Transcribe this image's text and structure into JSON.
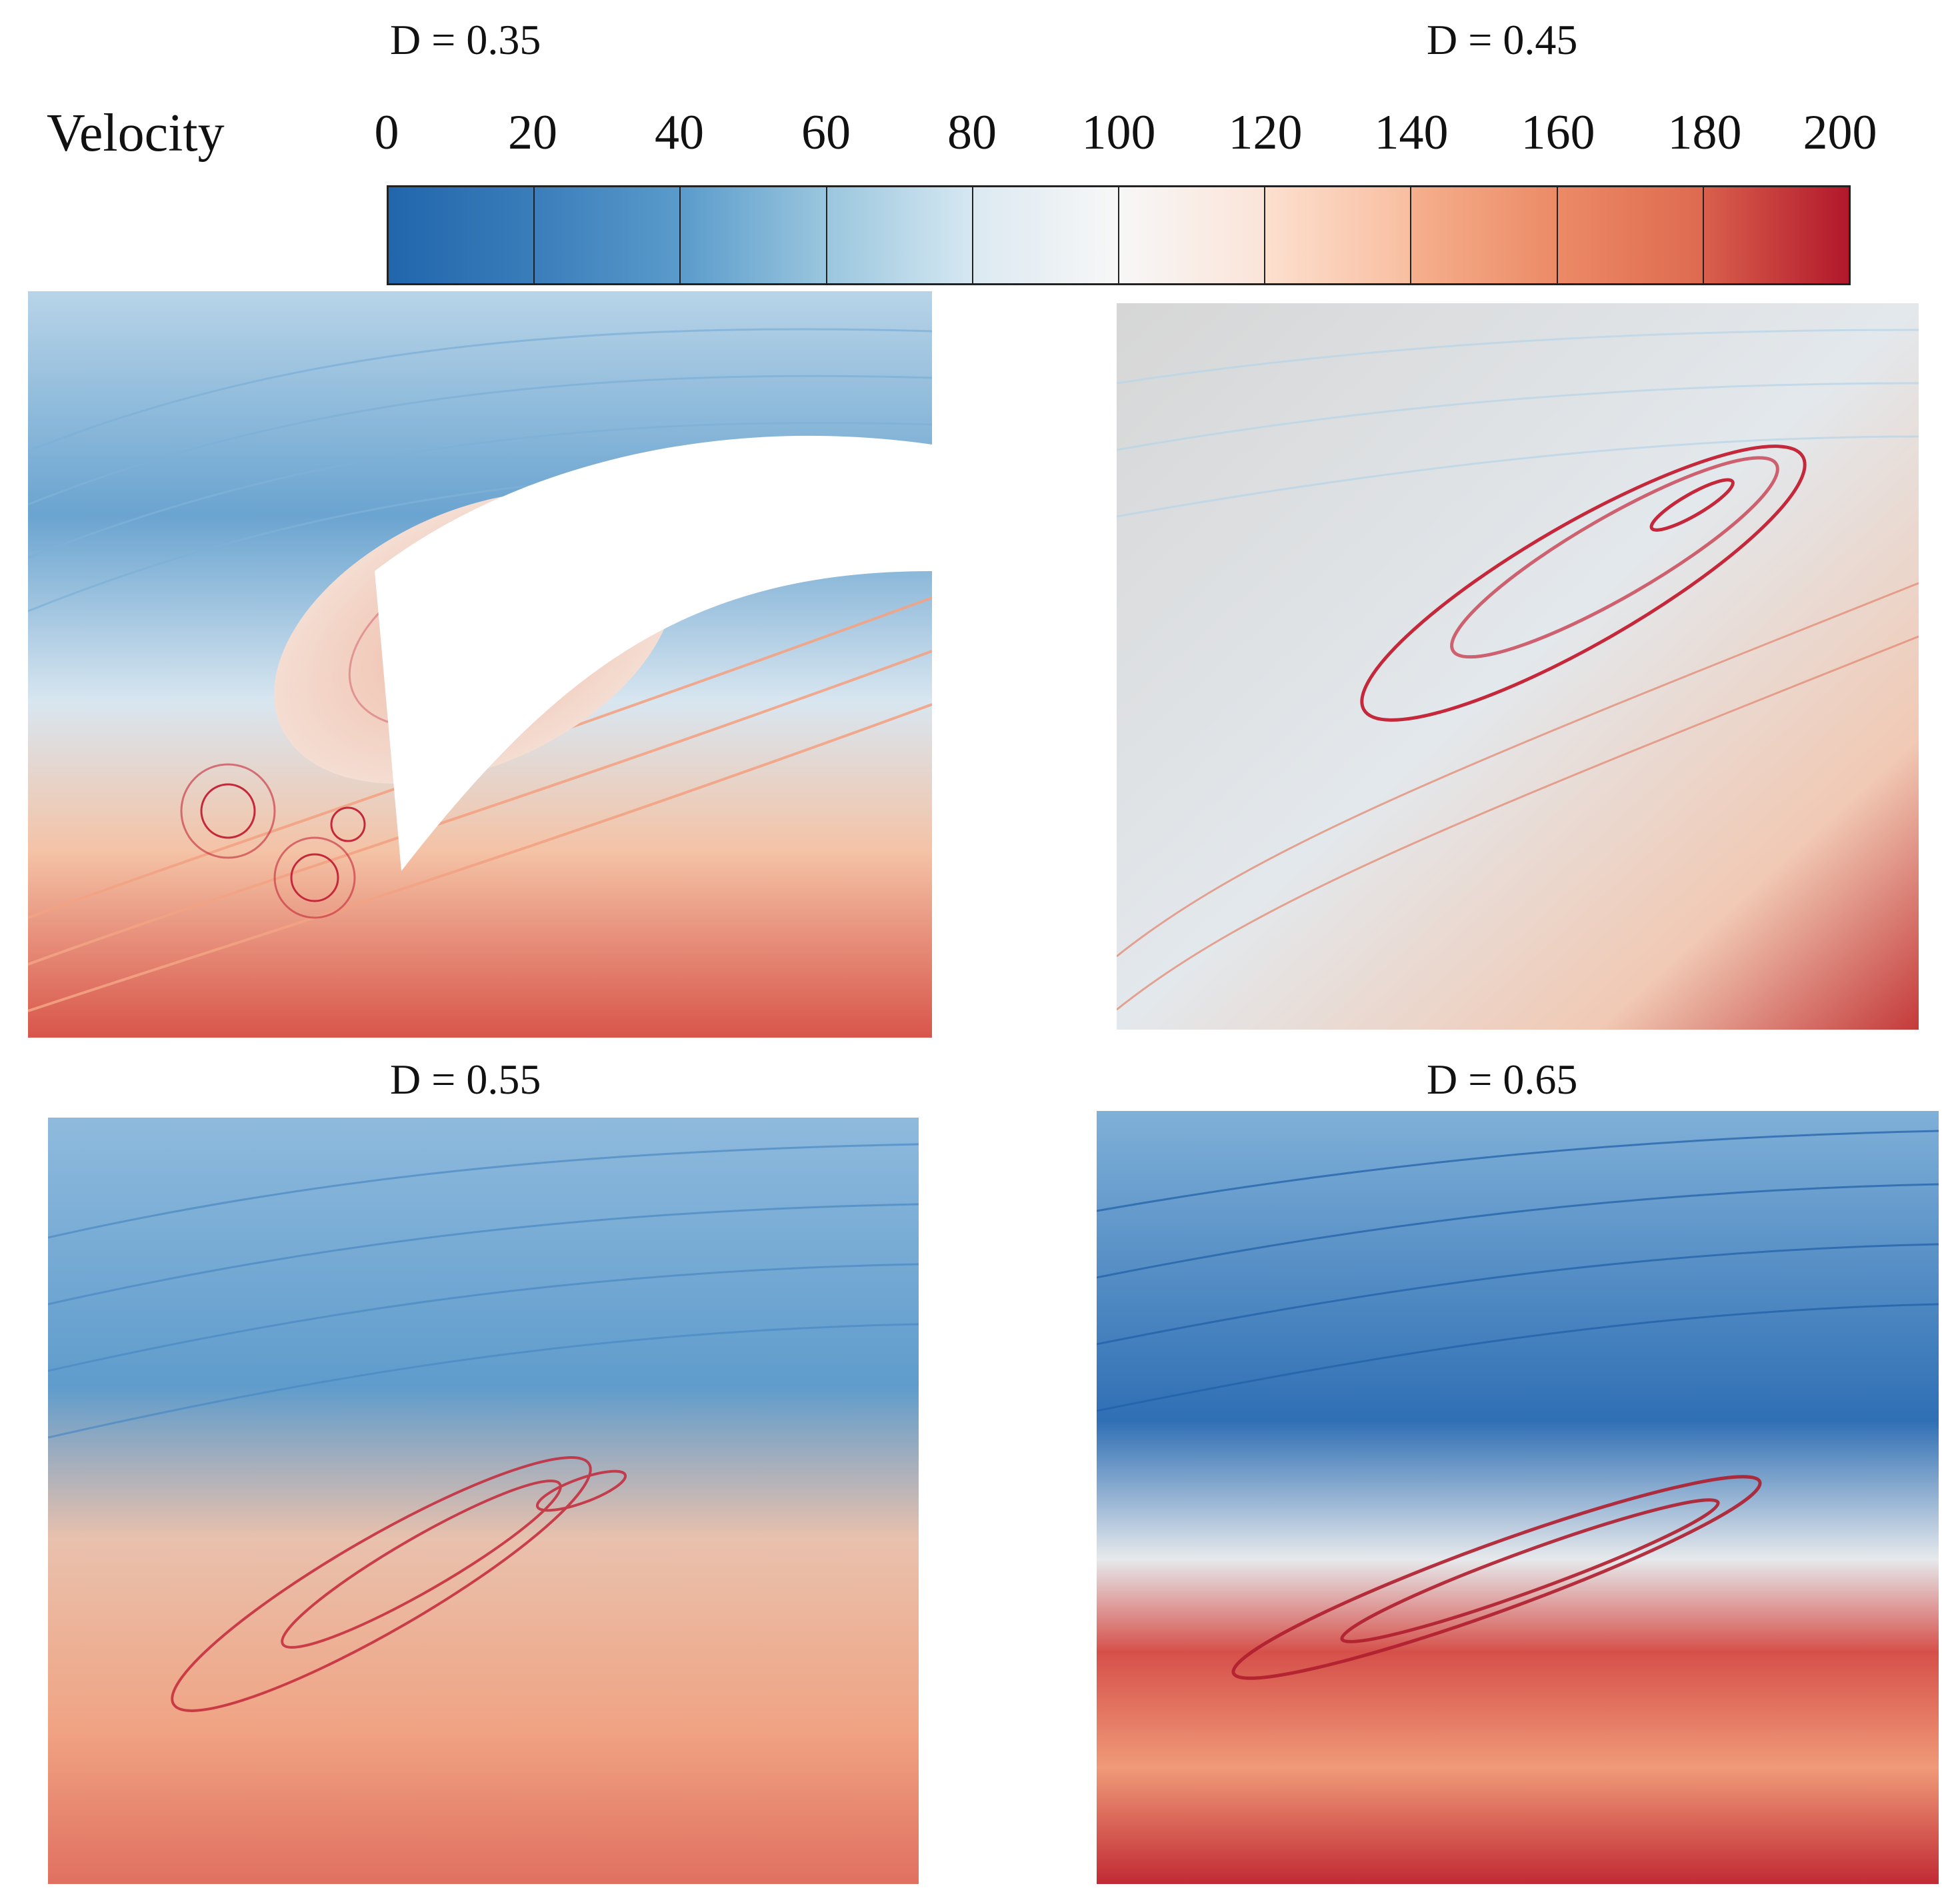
{
  "panels": [
    {
      "label": "D = 0.35"
    },
    {
      "label": "D = 0.45"
    },
    {
      "label": "D = 0.55"
    },
    {
      "label": "D = 0.65"
    }
  ],
  "colorbar": {
    "title": "Velocity",
    "ticks": [
      "0",
      "20",
      "40",
      "60",
      "80",
      "100",
      "120",
      "140",
      "160",
      "180",
      "200"
    ],
    "colors": [
      "#2166ac",
      "#4393c3",
      "#92c5de",
      "#d1e5f0",
      "#f7f7f7",
      "#fddbc7",
      "#f4a582",
      "#d6604d",
      "#b2182b"
    ]
  }
}
